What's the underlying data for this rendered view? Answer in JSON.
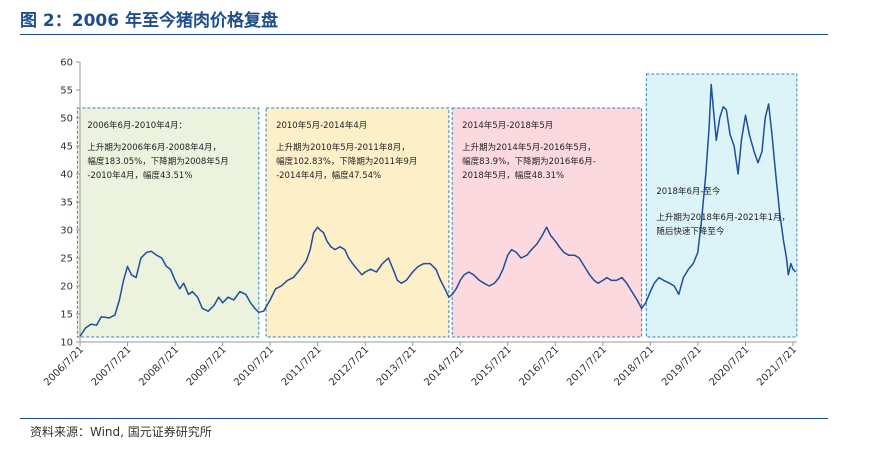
{
  "figure": {
    "title": "图 2：2006 年至今猪肉价格复盘",
    "source": "资料来源：Wind, 国元证券研究所"
  },
  "chart_data": {
    "type": "line",
    "title": "",
    "xlabel": "",
    "ylabel": "",
    "ylim": [
      10,
      60
    ],
    "yticks": [
      10,
      15,
      20,
      25,
      30,
      35,
      40,
      45,
      50,
      55,
      60
    ],
    "xticks": [
      "2006/7/21",
      "2007/7/21",
      "2008/7/21",
      "2009/7/21",
      "2010/7/21",
      "2011/7/21",
      "2012/7/21",
      "2013/7/21",
      "2014/7/21",
      "2015/7/21",
      "2016/7/21",
      "2017/7/21",
      "2018/7/21",
      "2019/7/21",
      "2020/7/21",
      "2021/7/21"
    ],
    "line_color": "#1f4e9c",
    "series": [
      {
        "name": "",
        "points": [
          [
            "2006-07-21",
            11.0
          ],
          [
            "2006-09-01",
            12.5
          ],
          [
            "2006-10-15",
            13.2
          ],
          [
            "2006-11-25",
            13.0
          ],
          [
            "2007-01-01",
            14.5
          ],
          [
            "2007-03-01",
            14.3
          ],
          [
            "2007-04-15",
            14.8
          ],
          [
            "2007-05-20",
            17.5
          ],
          [
            "2007-06-20",
            21.0
          ],
          [
            "2007-07-21",
            23.5
          ],
          [
            "2007-08-20",
            22.0
          ],
          [
            "2007-09-25",
            21.5
          ],
          [
            "2007-11-01",
            25.0
          ],
          [
            "2007-12-15",
            26.0
          ],
          [
            "2008-01-20",
            26.2
          ],
          [
            "2008-03-01",
            25.5
          ],
          [
            "2008-04-10",
            25.0
          ],
          [
            "2008-05-15",
            23.5
          ],
          [
            "2008-06-15",
            23.0
          ],
          [
            "2008-07-21",
            21.0
          ],
          [
            "2008-08-25",
            19.5
          ],
          [
            "2008-09-25",
            20.5
          ],
          [
            "2008-11-01",
            18.5
          ],
          [
            "2008-12-01",
            19.0
          ],
          [
            "2009-01-10",
            18.0
          ],
          [
            "2009-02-15",
            16.0
          ],
          [
            "2009-04-01",
            15.5
          ],
          [
            "2009-05-15",
            16.5
          ],
          [
            "2009-06-20",
            18.0
          ],
          [
            "2009-07-21",
            17.0
          ],
          [
            "2009-09-01",
            18.0
          ],
          [
            "2009-10-15",
            17.5
          ],
          [
            "2009-12-01",
            19.0
          ],
          [
            "2010-01-15",
            18.5
          ],
          [
            "2010-02-20",
            17.0
          ],
          [
            "2010-03-25",
            16.0
          ],
          [
            "2010-04-25",
            15.3
          ],
          [
            "2010-06-01",
            15.5
          ],
          [
            "2010-07-21",
            17.5
          ],
          [
            "2010-09-01",
            19.5
          ],
          [
            "2010-10-15",
            20.0
          ],
          [
            "2010-12-01",
            21.0
          ],
          [
            "2011-01-15",
            21.5
          ],
          [
            "2011-02-20",
            22.5
          ],
          [
            "2011-03-25",
            23.5
          ],
          [
            "2011-04-25",
            24.5
          ],
          [
            "2011-05-25",
            26.5
          ],
          [
            "2011-06-20",
            29.5
          ],
          [
            "2011-07-21",
            30.5
          ],
          [
            "2011-08-10",
            30.0
          ],
          [
            "2011-09-05",
            29.5
          ],
          [
            "2011-10-01",
            28.0
          ],
          [
            "2011-11-01",
            27.0
          ],
          [
            "2011-12-01",
            26.5
          ],
          [
            "2012-01-10",
            27.0
          ],
          [
            "2012-02-15",
            26.5
          ],
          [
            "2012-03-15",
            25.0
          ],
          [
            "2012-04-15",
            24.0
          ],
          [
            "2012-05-20",
            23.0
          ],
          [
            "2012-06-25",
            22.0
          ],
          [
            "2012-07-21",
            22.5
          ],
          [
            "2012-09-01",
            23.0
          ],
          [
            "2012-10-15",
            22.5
          ],
          [
            "2012-12-01",
            24.0
          ],
          [
            "2013-01-15",
            25.0
          ],
          [
            "2013-02-20",
            23.0
          ],
          [
            "2013-03-25",
            21.0
          ],
          [
            "2013-04-25",
            20.5
          ],
          [
            "2013-06-01",
            21.0
          ],
          [
            "2013-07-21",
            22.5
          ],
          [
            "2013-09-01",
            23.5
          ],
          [
            "2013-10-15",
            24.0
          ],
          [
            "2013-12-01",
            24.0
          ],
          [
            "2014-01-15",
            23.0
          ],
          [
            "2014-02-20",
            21.0
          ],
          [
            "2014-03-25",
            19.5
          ],
          [
            "2014-04-25",
            18.0
          ],
          [
            "2014-05-20",
            18.5
          ],
          [
            "2014-06-20",
            19.5
          ],
          [
            "2014-07-21",
            21.0
          ],
          [
            "2014-08-20",
            22.0
          ],
          [
            "2014-09-25",
            22.5
          ],
          [
            "2014-11-01",
            22.0
          ],
          [
            "2014-12-15",
            21.0
          ],
          [
            "2015-01-20",
            20.5
          ],
          [
            "2015-03-01",
            20.0
          ],
          [
            "2015-04-10",
            20.5
          ],
          [
            "2015-05-15",
            21.5
          ],
          [
            "2015-06-15",
            23.0
          ],
          [
            "2015-07-21",
            25.5
          ],
          [
            "2015-08-20",
            26.5
          ],
          [
            "2015-09-25",
            26.0
          ],
          [
            "2015-11-01",
            25.0
          ],
          [
            "2015-12-15",
            25.5
          ],
          [
            "2016-01-20",
            26.5
          ],
          [
            "2016-03-01",
            27.5
          ],
          [
            "2016-04-10",
            29.0
          ],
          [
            "2016-05-15",
            30.5
          ],
          [
            "2016-06-15",
            29.0
          ],
          [
            "2016-07-21",
            28.0
          ],
          [
            "2016-08-20",
            27.0
          ],
          [
            "2016-09-25",
            26.0
          ],
          [
            "2016-11-01",
            25.5
          ],
          [
            "2016-12-15",
            25.5
          ],
          [
            "2017-01-20",
            25.0
          ],
          [
            "2017-03-01",
            23.5
          ],
          [
            "2017-04-10",
            22.0
          ],
          [
            "2017-05-15",
            21.0
          ],
          [
            "2017-06-15",
            20.5
          ],
          [
            "2017-07-21",
            21.0
          ],
          [
            "2017-08-20",
            21.5
          ],
          [
            "2017-09-25",
            21.0
          ],
          [
            "2017-11-01",
            21.0
          ],
          [
            "2017-12-15",
            21.5
          ],
          [
            "2018-01-20",
            20.5
          ],
          [
            "2018-03-01",
            19.0
          ],
          [
            "2018-04-10",
            17.5
          ],
          [
            "2018-05-15",
            16.0
          ],
          [
            "2018-06-15",
            17.0
          ],
          [
            "2018-07-21",
            19.0
          ],
          [
            "2018-08-20",
            20.5
          ],
          [
            "2018-09-25",
            21.5
          ],
          [
            "2018-11-01",
            21.0
          ],
          [
            "2018-12-15",
            20.5
          ],
          [
            "2019-01-20",
            20.0
          ],
          [
            "2019-02-25",
            18.5
          ],
          [
            "2019-04-01",
            21.5
          ],
          [
            "2019-05-10",
            23.0
          ],
          [
            "2019-06-15",
            24.0
          ],
          [
            "2019-07-21",
            26.0
          ],
          [
            "2019-08-20",
            32.0
          ],
          [
            "2019-09-20",
            40.0
          ],
          [
            "2019-10-15",
            48.0
          ],
          [
            "2019-11-01",
            56.0
          ],
          [
            "2019-11-20",
            51.0
          ],
          [
            "2019-12-10",
            46.0
          ],
          [
            "2020-01-05",
            50.0
          ],
          [
            "2020-02-01",
            52.0
          ],
          [
            "2020-02-25",
            51.5
          ],
          [
            "2020-03-25",
            47.0
          ],
          [
            "2020-04-25",
            45.0
          ],
          [
            "2020-05-25",
            40.0
          ],
          [
            "2020-06-20",
            46.0
          ],
          [
            "2020-07-21",
            50.5
          ],
          [
            "2020-08-20",
            47.0
          ],
          [
            "2020-09-25",
            44.0
          ],
          [
            "2020-10-25",
            42.0
          ],
          [
            "2020-11-25",
            44.0
          ],
          [
            "2020-12-20",
            50.0
          ],
          [
            "2021-01-15",
            52.5
          ],
          [
            "2021-02-10",
            47.0
          ],
          [
            "2021-03-10",
            40.0
          ],
          [
            "2021-04-10",
            33.0
          ],
          [
            "2021-05-10",
            28.0
          ],
          [
            "2021-06-01",
            25.0
          ],
          [
            "2021-06-15",
            22.0
          ],
          [
            "2021-07-05",
            24.0
          ],
          [
            "2021-07-21",
            23.0
          ],
          [
            "2021-08-10",
            22.5
          ]
        ]
      }
    ],
    "periods": [
      {
        "title": "2006年6月-2010年4月：",
        "lines": [
          "上升期为2006年6月-2008年4月，",
          "幅度183.05%，下降期为2008年5月",
          "-2010年4月，幅度43.51%"
        ],
        "start": "2006-07-01",
        "end": "2010-04-25",
        "fill": "#ebf3df",
        "border": "#2e86c1"
      },
      {
        "title": "2010年5月-2014年4月",
        "lines": [
          "上升期为2010年5月-2011年8月，",
          "幅度102.83%，下降期为2011年9月",
          "-2014年4月，幅度47.54%"
        ],
        "start": "2010-06-20",
        "end": "2014-04-25",
        "fill": "#fdf0c9",
        "border": "#2e86c1"
      },
      {
        "title": "2014年5月-2018年5月",
        "lines": [
          "上升期为2014年5月-2016年5月，",
          "幅度83.9%，下降期为2016年6月-",
          "2018年5月，幅度48.31%"
        ],
        "start": "2014-05-20",
        "end": "2018-05-15",
        "fill": "#fcd9de",
        "border": "#2e86c1"
      },
      {
        "title": "2018年6月-至今",
        "lines": [
          "上升期为2018年6月-2021年1月，",
          "随后快速下降至今"
        ],
        "start": "2018-06-20",
        "end": "2021-08-20",
        "fill": "#dcf3f8",
        "border": "#2e86c1"
      }
    ]
  }
}
